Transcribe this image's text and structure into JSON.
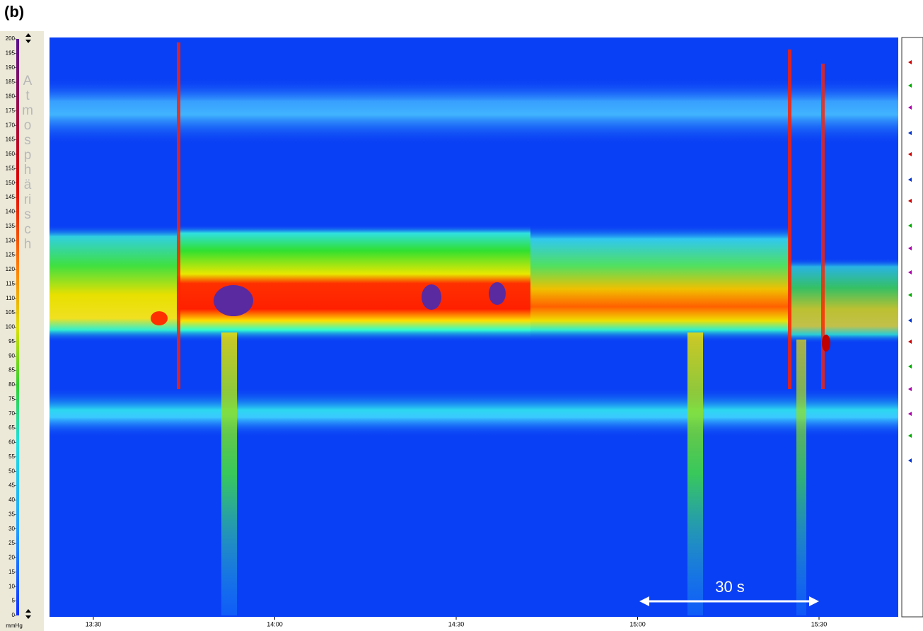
{
  "chart_data": {
    "type": "heatmap",
    "panel_label": "(b)",
    "side_label": "Atmosphärisch",
    "y_unit": "mmHg",
    "annotation": "30 s",
    "ylim": [
      0,
      200
    ],
    "yticks": [
      0,
      5,
      10,
      15,
      20,
      25,
      30,
      35,
      40,
      45,
      50,
      55,
      60,
      65,
      70,
      75,
      80,
      85,
      90,
      95,
      100,
      105,
      110,
      115,
      120,
      125,
      130,
      135,
      140,
      145,
      150,
      155,
      160,
      165,
      170,
      175,
      180,
      185,
      190,
      195,
      200
    ],
    "xlim": [
      802.75,
      943.1
    ],
    "xticks": [
      {
        "value": 810,
        "label": "13:30"
      },
      {
        "value": 840,
        "label": "14:00"
      },
      {
        "value": 870,
        "label": "14:30"
      },
      {
        "value": 900,
        "label": "15:00"
      },
      {
        "value": 930,
        "label": "15:30"
      }
    ]
  }
}
